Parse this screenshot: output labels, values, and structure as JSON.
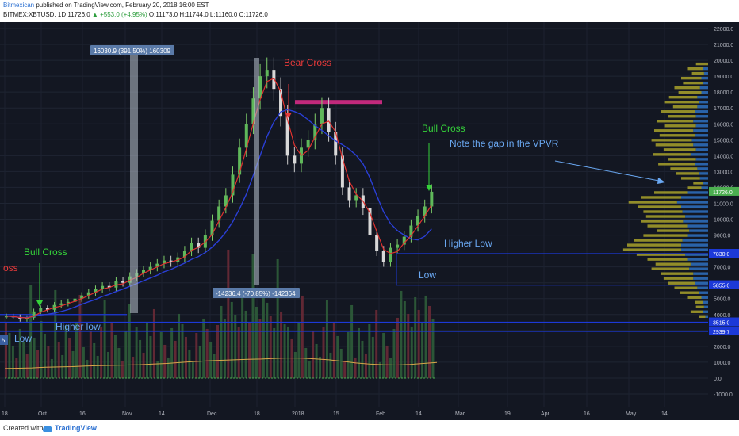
{
  "header": {
    "author": "Bitmexican",
    "published": "published on TradingView.com, February 20, 2018 16:00 EST",
    "symbol": "BITMEX:XBTUSD, 1D",
    "last": "11726.0",
    "change": "+553.0 (+4.95%)",
    "ohlc": "O:11173.0 H:11744.0 L:11160.0 C:11726.0"
  },
  "footer": {
    "created": "Created with",
    "brand": "TradingView"
  },
  "chart_data": {
    "type": "candlestick",
    "y_ticks": [
      "22000.0",
      "21000.0",
      "20000.0",
      "19000.0",
      "18000.0",
      "17000.0",
      "16000.0",
      "15000.0",
      "14000.0",
      "13000.0",
      "12000.0",
      "11000.0",
      "10000.0",
      "9000.0",
      "8000.0",
      "7000.0",
      "6000.0",
      "5000.0",
      "4000.0",
      "3000.0",
      "2000.0",
      "1000.0",
      "0.0",
      "-1000.0"
    ],
    "x_ticks": [
      "18",
      "Oct",
      "16",
      "Nov",
      "14",
      "Dec",
      "18",
      "2018",
      "15",
      "Feb",
      "14",
      "Mar",
      "19",
      "Apr",
      "16",
      "May",
      "14"
    ],
    "price_labels": [
      {
        "text": "11726.0",
        "color": "#4caf50"
      },
      {
        "text": "7830.0",
        "color": "#1c39d8"
      },
      {
        "text": "5855.0",
        "color": "#1c39d8"
      },
      {
        "text": "3515.0",
        "color": "#1c39d8"
      },
      {
        "text": "2939.7",
        "color": "#1c39d8"
      }
    ],
    "annotations": {
      "bear_cross": "Bear Cross",
      "bull_cross_right": "Bull Cross",
      "bull_cross_left": "Bull Cross",
      "cross_left": "oss",
      "vpvr_note": "Note the gap in the VPVR",
      "higher_low_right": "Higher Low",
      "low_right": "Low",
      "higher_low_left": "Higher low",
      "low_left": "Low",
      "measure_up": "16030.9 (391.50%) 160309",
      "measure_down": "-14236.4 (-70.85%) -142364",
      "left_marker": "5"
    },
    "series_close": [
      3900,
      3850,
      3700,
      3800,
      4200,
      4400,
      4300,
      4600,
      4700,
      4800,
      5000,
      5200,
      5400,
      5600,
      5800,
      5700,
      6100,
      6000,
      6400,
      6600,
      6800,
      7000,
      7200,
      7400,
      7300,
      7600,
      8000,
      8500,
      8200,
      9000,
      9900,
      10800,
      11500,
      12800,
      14500,
      16000,
      17600,
      19000,
      19400,
      18200,
      16500,
      14000,
      13500,
      14500,
      15000,
      16000,
      17000,
      15500,
      14000,
      12000,
      11200,
      11500,
      10700,
      9000,
      8000,
      7300,
      8200,
      8400,
      8900,
      9600,
      10200,
      10800,
      11726
    ],
    "volume_ma": [
      600,
      620,
      640,
      680,
      700,
      720,
      760,
      780,
      800,
      820,
      840,
      880,
      920,
      980,
      1040,
      1080,
      1120,
      1150,
      1180,
      1200,
      1240,
      1270,
      1260,
      1210,
      1150,
      1060,
      950,
      880,
      840,
      820,
      860,
      920,
      980
    ]
  }
}
